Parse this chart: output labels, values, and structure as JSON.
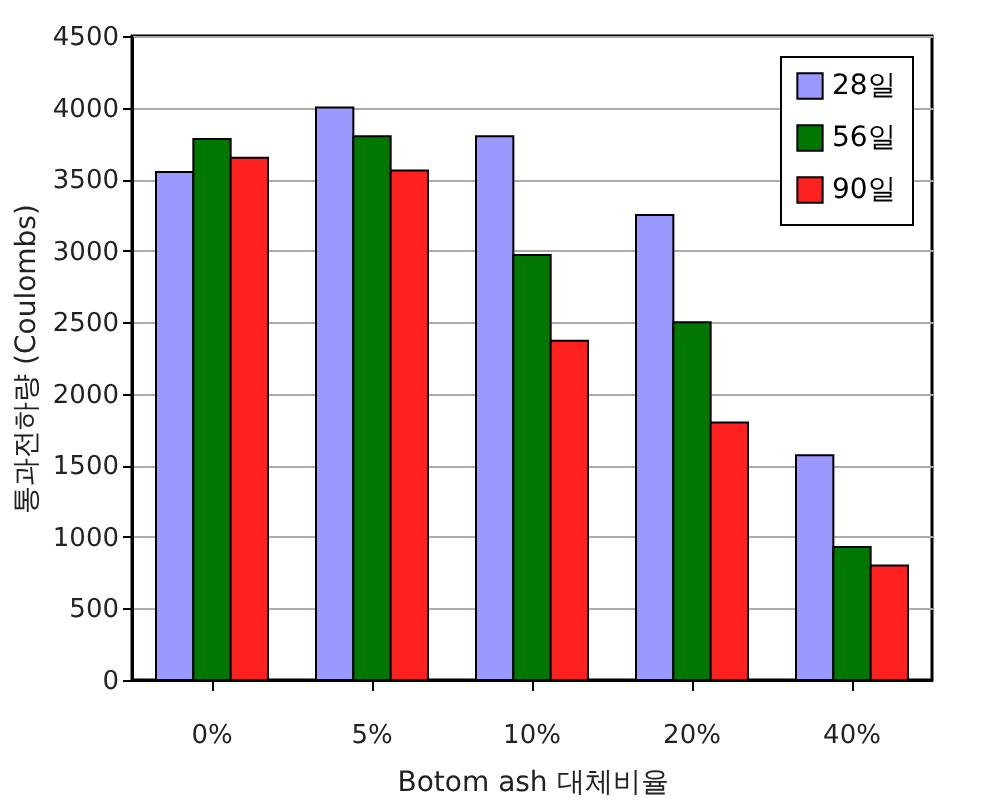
{
  "chart_data": {
    "type": "bar",
    "xlabel": "Botom ash 대체비율",
    "ylabel": "통과전하량 (Coulombs)",
    "categories": [
      "0%",
      "5%",
      "10%",
      "20%",
      "40%"
    ],
    "series": [
      {
        "name": "28일",
        "color": "#9999ff",
        "values": [
          3550,
          4000,
          3800,
          3250,
          1570
        ]
      },
      {
        "name": "56일",
        "color": "#007700",
        "values": [
          3780,
          3800,
          2970,
          2500,
          930
        ]
      },
      {
        "name": "90일",
        "color": "#ff2020",
        "values": [
          3650,
          3560,
          2370,
          1800,
          800
        ]
      }
    ],
    "ylim": [
      0,
      4500
    ],
    "yticks": [
      0,
      500,
      1000,
      1500,
      2000,
      2500,
      3000,
      3500,
      4000,
      4500
    ],
    "grid": "y",
    "legend": "top right"
  }
}
